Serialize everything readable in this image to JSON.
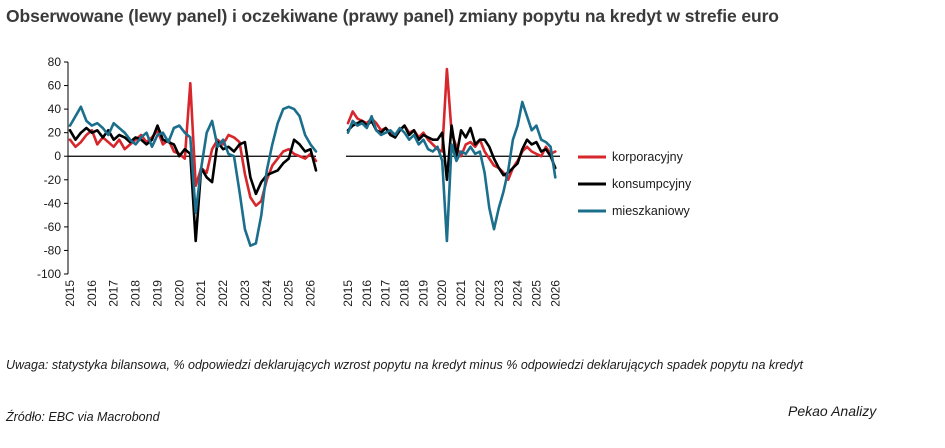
{
  "title": "Obserwowane (lewy panel) i oczekiwane (prawy panel) zmiany popytu na kredyt w strefie euro",
  "note": "Uwaga: statystyka bilansowa, % odpowiedzi deklarujących wzrost popytu na kredyt minus % odpowiedzi deklarujących spadek popytu na kredyt",
  "source": "Źródło: EBC via Macrobond",
  "brand": "Pekao Analizy",
  "chart_data": [
    {
      "type": "line",
      "panel": "lewy",
      "ylim": [
        -100,
        80
      ],
      "yticks": [
        80,
        60,
        40,
        20,
        0,
        -20,
        -40,
        -60,
        -80,
        -100
      ],
      "xlim": [
        2015.0,
        2026.25
      ],
      "xticks": [
        "2015",
        "2016",
        "2017",
        "2018",
        "2019",
        "2020",
        "2021",
        "2022",
        "2023",
        "2024",
        "2025",
        "2026"
      ],
      "legend_position": "right",
      "series": [
        {
          "name": "korporacyjny",
          "color": "#d7262c",
          "x": [
            2015.0,
            2015.25,
            2015.5,
            2015.75,
            2016.0,
            2016.25,
            2016.5,
            2016.75,
            2017.0,
            2017.25,
            2017.5,
            2017.75,
            2018.0,
            2018.25,
            2018.5,
            2018.75,
            2019.0,
            2019.25,
            2019.5,
            2019.75,
            2020.0,
            2020.25,
            2020.5,
            2020.75,
            2021.0,
            2021.25,
            2021.5,
            2021.75,
            2022.0,
            2022.25,
            2022.5,
            2022.75,
            2023.0,
            2023.25,
            2023.5,
            2023.75,
            2024.0,
            2024.25,
            2024.5,
            2024.75,
            2025.0,
            2025.25,
            2025.5,
            2025.75,
            2026.0,
            2026.25
          ],
          "y": [
            14,
            8,
            12,
            18,
            22,
            10,
            16,
            12,
            8,
            14,
            6,
            10,
            14,
            18,
            12,
            16,
            22,
            10,
            14,
            4,
            2,
            -2,
            62,
            -25,
            -10,
            -14,
            6,
            14,
            10,
            18,
            16,
            12,
            -15,
            -35,
            -42,
            -38,
            -20,
            -8,
            -2,
            4,
            6,
            2,
            0,
            -2,
            2,
            -4
          ]
        },
        {
          "name": "konsumpcyjny",
          "color": "#000000",
          "x": [
            2015.0,
            2015.25,
            2015.5,
            2015.75,
            2016.0,
            2016.25,
            2016.5,
            2016.75,
            2017.0,
            2017.25,
            2017.5,
            2017.75,
            2018.0,
            2018.25,
            2018.5,
            2018.75,
            2019.0,
            2019.25,
            2019.5,
            2019.75,
            2020.0,
            2020.25,
            2020.5,
            2020.75,
            2021.0,
            2021.25,
            2021.5,
            2021.75,
            2022.0,
            2022.25,
            2022.5,
            2022.75,
            2023.0,
            2023.25,
            2023.5,
            2023.75,
            2024.0,
            2024.25,
            2024.5,
            2024.75,
            2025.0,
            2025.25,
            2025.5,
            2025.75,
            2026.0,
            2026.25
          ],
          "y": [
            22,
            14,
            20,
            24,
            20,
            22,
            16,
            22,
            14,
            18,
            16,
            12,
            16,
            14,
            10,
            14,
            26,
            14,
            12,
            10,
            0,
            6,
            2,
            -72,
            -10,
            -18,
            -22,
            12,
            6,
            8,
            4,
            10,
            12,
            -18,
            -32,
            -22,
            -16,
            -14,
            -12,
            -6,
            -2,
            14,
            10,
            4,
            6,
            -12
          ]
        },
        {
          "name": "mieszkaniowy",
          "color": "#1b6f8c",
          "x": [
            2015.0,
            2015.25,
            2015.5,
            2015.75,
            2016.0,
            2016.25,
            2016.5,
            2016.75,
            2017.0,
            2017.25,
            2017.5,
            2017.75,
            2018.0,
            2018.25,
            2018.5,
            2018.75,
            2019.0,
            2019.25,
            2019.5,
            2019.75,
            2020.0,
            2020.25,
            2020.5,
            2020.75,
            2021.0,
            2021.25,
            2021.5,
            2021.75,
            2022.0,
            2022.25,
            2022.5,
            2022.75,
            2023.0,
            2023.25,
            2023.5,
            2023.75,
            2024.0,
            2024.25,
            2024.5,
            2024.75,
            2025.0,
            2025.25,
            2025.5,
            2025.75,
            2026.0,
            2026.25
          ],
          "y": [
            26,
            34,
            42,
            30,
            26,
            28,
            24,
            18,
            28,
            24,
            20,
            14,
            10,
            16,
            20,
            8,
            18,
            20,
            12,
            24,
            26,
            20,
            16,
            -48,
            -10,
            20,
            30,
            8,
            14,
            2,
            0,
            -30,
            -62,
            -76,
            -74,
            -50,
            -12,
            10,
            28,
            40,
            42,
            40,
            34,
            18,
            10,
            4
          ]
        }
      ]
    },
    {
      "type": "line",
      "panel": "prawy",
      "ylim": [
        -100,
        80
      ],
      "xlim": [
        2015.0,
        2026.25
      ],
      "xticks": [
        "2015",
        "2016",
        "2017",
        "2018",
        "2019",
        "2020",
        "2021",
        "2022",
        "2023",
        "2024",
        "2025",
        "2026"
      ],
      "series": [
        {
          "name": "korporacyjny",
          "color": "#d7262c",
          "x": [
            2015.0,
            2015.25,
            2015.5,
            2015.75,
            2016.0,
            2016.25,
            2016.5,
            2016.75,
            2017.0,
            2017.25,
            2017.5,
            2017.75,
            2018.0,
            2018.25,
            2018.5,
            2018.75,
            2019.0,
            2019.25,
            2019.5,
            2019.75,
            2020.0,
            2020.25,
            2020.5,
            2020.75,
            2021.0,
            2021.25,
            2021.5,
            2021.75,
            2022.0,
            2022.25,
            2022.5,
            2022.75,
            2023.0,
            2023.25,
            2023.5,
            2023.75,
            2024.0,
            2024.25,
            2024.5,
            2024.75,
            2025.0,
            2025.25,
            2025.5,
            2025.75,
            2026.0
          ],
          "y": [
            28,
            38,
            32,
            30,
            28,
            32,
            28,
            22,
            24,
            20,
            16,
            22,
            26,
            20,
            22,
            16,
            20,
            14,
            10,
            6,
            4,
            74,
            20,
            8,
            0,
            10,
            12,
            8,
            14,
            4,
            -2,
            -8,
            -10,
            -14,
            -20,
            -10,
            -4,
            4,
            8,
            4,
            2,
            0,
            8,
            2,
            4
          ]
        },
        {
          "name": "konsumpcyjny",
          "color": "#000000",
          "x": [
            2015.0,
            2015.25,
            2015.5,
            2015.75,
            2016.0,
            2016.25,
            2016.5,
            2016.75,
            2017.0,
            2017.25,
            2017.5,
            2017.75,
            2018.0,
            2018.25,
            2018.5,
            2018.75,
            2019.0,
            2019.25,
            2019.5,
            2019.75,
            2020.0,
            2020.25,
            2020.5,
            2020.75,
            2021.0,
            2021.25,
            2021.5,
            2021.75,
            2022.0,
            2022.25,
            2022.5,
            2022.75,
            2023.0,
            2023.25,
            2023.5,
            2023.75,
            2024.0,
            2024.25,
            2024.5,
            2024.75,
            2025.0,
            2025.25,
            2025.5,
            2025.75,
            2026.0
          ],
          "y": [
            22,
            26,
            28,
            30,
            26,
            30,
            22,
            20,
            24,
            18,
            16,
            22,
            26,
            18,
            22,
            14,
            18,
            16,
            14,
            14,
            20,
            -20,
            26,
            0,
            22,
            16,
            24,
            10,
            14,
            14,
            8,
            -2,
            -10,
            -16,
            -14,
            -10,
            -6,
            6,
            14,
            10,
            12,
            4,
            6,
            0,
            -10
          ]
        },
        {
          "name": "mieszkaniowy",
          "color": "#1b6f8c",
          "x": [
            2015.0,
            2015.25,
            2015.5,
            2015.75,
            2016.0,
            2016.25,
            2016.5,
            2016.75,
            2017.0,
            2017.25,
            2017.5,
            2017.75,
            2018.0,
            2018.25,
            2018.5,
            2018.75,
            2019.0,
            2019.25,
            2019.5,
            2019.75,
            2020.0,
            2020.25,
            2020.5,
            2020.75,
            2021.0,
            2021.25,
            2021.5,
            2021.75,
            2022.0,
            2022.25,
            2022.5,
            2022.75,
            2023.0,
            2023.25,
            2023.5,
            2023.75,
            2024.0,
            2024.25,
            2024.5,
            2024.75,
            2025.0,
            2025.25,
            2025.5,
            2025.75,
            2026.0
          ],
          "y": [
            20,
            30,
            26,
            28,
            24,
            34,
            22,
            18,
            20,
            22,
            18,
            24,
            20,
            14,
            18,
            10,
            14,
            6,
            4,
            8,
            -4,
            -72,
            10,
            -4,
            4,
            2,
            8,
            2,
            4,
            -14,
            -44,
            -62,
            -44,
            -30,
            -12,
            14,
            26,
            46,
            34,
            22,
            26,
            14,
            12,
            8,
            -18
          ]
        }
      ]
    }
  ]
}
